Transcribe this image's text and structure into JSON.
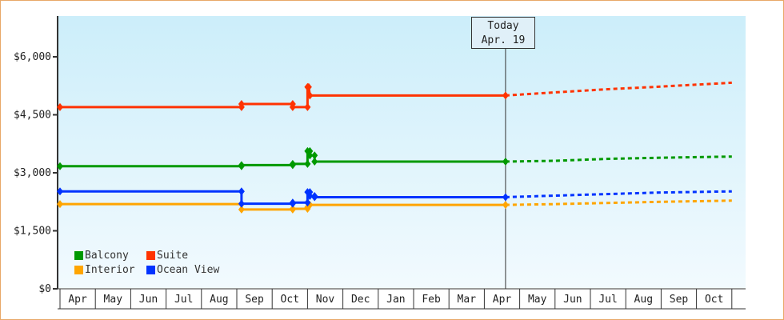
{
  "chart_data": {
    "type": "line",
    "title": "",
    "xlabel": "",
    "ylabel": "",
    "ylim": [
      0,
      7000
    ],
    "y_ticks": [
      "$0",
      "$1,500",
      "$3,000",
      "$4,500",
      "$6,000"
    ],
    "y_tick_values": [
      0,
      1500,
      3000,
      4500,
      6000
    ],
    "x_ticks": [
      "Apr",
      "May",
      "Jun",
      "Jul",
      "Aug",
      "Sep",
      "Oct",
      "Nov",
      "Dec",
      "Jan",
      "Feb",
      "Mar",
      "Apr",
      "May",
      "Jun",
      "Jul",
      "Aug",
      "Sep",
      "Oct"
    ],
    "grid": false,
    "legend_placement": "bottom-left",
    "today": {
      "title": "Today",
      "date": "Apr. 19",
      "x": "Apr 19"
    },
    "series": [
      {
        "name": "Balcony",
        "color": "#009900",
        "actual": [
          [
            "Apr 1",
            3170
          ],
          [
            "Sep 5",
            3170
          ],
          [
            "Sep 5",
            3200
          ],
          [
            "Oct 19",
            3200
          ],
          [
            "Oct 19",
            3230
          ],
          [
            "Nov 1",
            3230
          ],
          [
            "Nov 1",
            3560
          ],
          [
            "Nov 3",
            3560
          ],
          [
            "Nov 3",
            3450
          ],
          [
            "Nov 7",
            3450
          ],
          [
            "Nov 7",
            3290
          ],
          [
            "Apr 19",
            3290
          ]
        ],
        "forecast": [
          [
            "Apr 19",
            3290
          ],
          [
            "Jun 1",
            3310
          ],
          [
            "Jul 15",
            3360
          ],
          [
            "Sep 1",
            3390
          ],
          [
            "Nov 1",
            3420
          ]
        ]
      },
      {
        "name": "Suite",
        "color": "#ff3300",
        "actual": [
          [
            "Apr 1",
            4700
          ],
          [
            "Sep 5",
            4700
          ],
          [
            "Sep 5",
            4780
          ],
          [
            "Oct 19",
            4780
          ],
          [
            "Oct 19",
            4700
          ],
          [
            "Nov 1",
            4700
          ],
          [
            "Nov 1",
            5220
          ],
          [
            "Nov 2",
            5220
          ],
          [
            "Nov 3",
            5000
          ],
          [
            "Apr 19",
            5000
          ]
        ],
        "forecast": [
          [
            "Apr 19",
            5000
          ],
          [
            "Jun 1",
            5080
          ],
          [
            "Jul 15",
            5160
          ],
          [
            "Sep 1",
            5230
          ],
          [
            "Nov 1",
            5330
          ]
        ]
      },
      {
        "name": "Interior",
        "color": "#ffa500",
        "actual": [
          [
            "Apr 1",
            2190
          ],
          [
            "Sep 5",
            2190
          ],
          [
            "Sep 5",
            2050
          ],
          [
            "Oct 19",
            2050
          ],
          [
            "Oct 19",
            2070
          ],
          [
            "Nov 1",
            2070
          ],
          [
            "Nov 1",
            2110
          ],
          [
            "Nov 3",
            2170
          ],
          [
            "Apr 19",
            2170
          ]
        ],
        "forecast": [
          [
            "Apr 19",
            2170
          ],
          [
            "Jun 1",
            2190
          ],
          [
            "Jul 15",
            2220
          ],
          [
            "Sep 1",
            2250
          ],
          [
            "Nov 1",
            2280
          ]
        ]
      },
      {
        "name": "Ocean View",
        "color": "#0033ff",
        "actual": [
          [
            "Apr 1",
            2520
          ],
          [
            "Sep 5",
            2520
          ],
          [
            "Sep 5",
            2200
          ],
          [
            "Oct 19",
            2200
          ],
          [
            "Oct 19",
            2230
          ],
          [
            "Nov 1",
            2230
          ],
          [
            "Nov 1",
            2500
          ],
          [
            "Nov 3",
            2500
          ],
          [
            "Nov 3",
            2400
          ],
          [
            "Nov 7",
            2400
          ],
          [
            "Nov 7",
            2370
          ],
          [
            "Apr 19",
            2370
          ]
        ],
        "forecast": [
          [
            "Apr 19",
            2370
          ],
          [
            "Jun 1",
            2410
          ],
          [
            "Jul 15",
            2450
          ],
          [
            "Sep 1",
            2490
          ],
          [
            "Nov 1",
            2520
          ]
        ]
      }
    ]
  }
}
